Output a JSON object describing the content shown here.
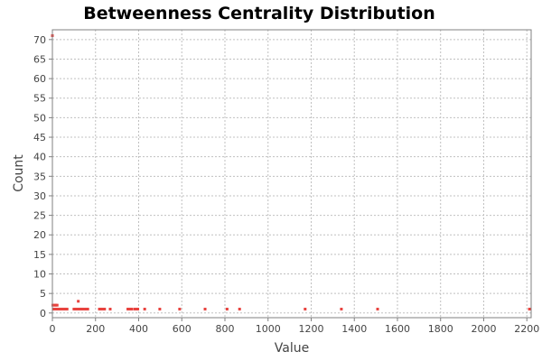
{
  "chart_data": {
    "type": "scatter",
    "title": "Betweenness Centrality Distribution",
    "xlabel": "Value",
    "ylabel": "Count",
    "xlim": [
      0,
      2220
    ],
    "ylim": [
      -1.2,
      72.5
    ],
    "x_ticks": [
      0,
      200,
      400,
      600,
      800,
      1000,
      1200,
      1400,
      1600,
      1800,
      2000,
      2200
    ],
    "x_tick_labels": [
      "0",
      "200",
      "400",
      "600",
      "800",
      "1000",
      "1200",
      "1400",
      "1600",
      "1800",
      "2000",
      "2200"
    ],
    "y_ticks": [
      0,
      5,
      10,
      15,
      20,
      25,
      30,
      35,
      40,
      45,
      50,
      55,
      60,
      65,
      70
    ],
    "y_tick_labels": [
      "0",
      "5",
      "10",
      "15",
      "20",
      "25",
      "30",
      "35",
      "40",
      "45",
      "50",
      "55",
      "60",
      "65",
      "70"
    ],
    "grid": true,
    "legend": "none",
    "colors": {
      "point": "#e8433f",
      "grid": "#c0c0c0",
      "frame": "#808080",
      "plot_bg": "#ffffff"
    },
    "series": [
      {
        "points": [
          [
            0,
            71
          ],
          [
            2,
            2
          ],
          [
            10,
            2
          ],
          [
            16,
            2
          ],
          [
            22,
            2
          ],
          [
            4,
            1
          ],
          [
            8,
            1
          ],
          [
            14,
            1
          ],
          [
            20,
            1
          ],
          [
            26,
            1
          ],
          [
            32,
            1
          ],
          [
            38,
            1
          ],
          [
            44,
            1
          ],
          [
            50,
            1
          ],
          [
            56,
            1
          ],
          [
            62,
            1
          ],
          [
            68,
            1
          ],
          [
            100,
            1
          ],
          [
            108,
            1
          ],
          [
            114,
            1
          ],
          [
            120,
            3
          ],
          [
            124,
            1
          ],
          [
            130,
            1
          ],
          [
            136,
            1
          ],
          [
            142,
            1
          ],
          [
            150,
            1
          ],
          [
            158,
            1
          ],
          [
            164,
            1
          ],
          [
            218,
            1
          ],
          [
            224,
            1
          ],
          [
            232,
            1
          ],
          [
            242,
            1
          ],
          [
            268,
            1
          ],
          [
            350,
            1
          ],
          [
            356,
            1
          ],
          [
            362,
            1
          ],
          [
            368,
            1
          ],
          [
            382,
            1
          ],
          [
            390,
            1
          ],
          [
            396,
            1
          ],
          [
            428,
            1
          ],
          [
            498,
            1
          ],
          [
            590,
            1
          ],
          [
            708,
            1
          ],
          [
            810,
            1
          ],
          [
            868,
            1
          ],
          [
            1172,
            1
          ],
          [
            1340,
            1
          ],
          [
            1508,
            1
          ],
          [
            2212,
            1
          ]
        ]
      }
    ]
  }
}
